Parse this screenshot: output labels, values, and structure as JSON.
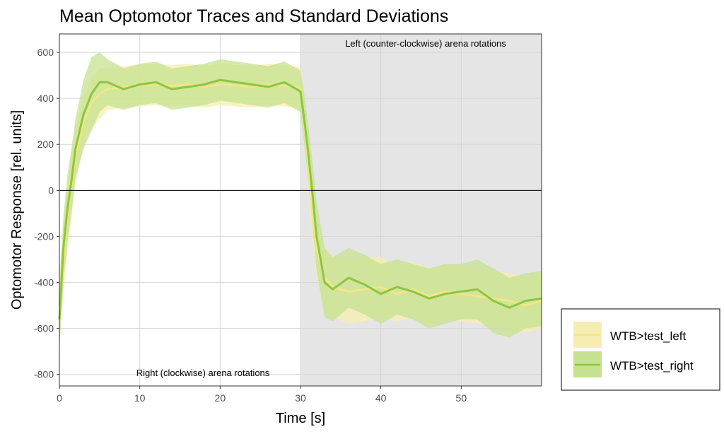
{
  "chart_data": {
    "type": "line",
    "title": "Mean Optomotor Traces and Standard Deviations",
    "xlabel": "Time [s]",
    "ylabel": "Optomotor Response [rel. units]",
    "xlim": [
      0,
      60
    ],
    "ylim": [
      -850,
      680
    ],
    "x_ticks": [
      0,
      10,
      20,
      30,
      40,
      50
    ],
    "y_ticks": [
      -800,
      -600,
      -400,
      -200,
      0,
      200,
      400,
      600
    ],
    "grid": true,
    "legend_position": "right",
    "shaded_region": {
      "x_start": 30,
      "x_end": 60,
      "color": "#e5e5e5"
    },
    "annotations": {
      "left_rotation": "Left (counter-clockwise) arena rotations",
      "right_rotation": "Right (clockwise) arena rotations"
    },
    "series": [
      {
        "name": "WTB>test_left",
        "color": "#f2e68a",
        "band_color": "#f5eeb0",
        "x": [
          0,
          0.5,
          1,
          1.5,
          2,
          3,
          4,
          5,
          6,
          8,
          10,
          12,
          14,
          16,
          18,
          20,
          22,
          24,
          26,
          28,
          29.5,
          30,
          30.5,
          31,
          31.5,
          32,
          33,
          34,
          36,
          38,
          40,
          42,
          44,
          46,
          48,
          50,
          52,
          54,
          56,
          58,
          60
        ],
        "values": [
          -500,
          -300,
          -120,
          20,
          150,
          300,
          380,
          420,
          440,
          450,
          455,
          460,
          455,
          460,
          450,
          460,
          455,
          450,
          460,
          455,
          450,
          440,
          300,
          100,
          -100,
          -250,
          -380,
          -420,
          -440,
          -430,
          -420,
          -450,
          -430,
          -460,
          -440,
          -450,
          -460,
          -470,
          -480,
          -500,
          -480
        ],
        "sd": [
          150,
          150,
          140,
          140,
          120,
          100,
          110,
          110,
          90,
          90,
          90,
          90,
          90,
          90,
          90,
          90,
          90,
          90,
          90,
          90,
          90,
          90,
          100,
          110,
          120,
          130,
          130,
          130,
          140,
          140,
          130,
          120,
          120,
          120,
          120,
          120,
          120,
          120,
          120,
          120,
          120
        ]
      },
      {
        "name": "WTB>test_right",
        "color": "#8dc63f",
        "band_color": "#c6e18f",
        "x": [
          0,
          0.5,
          1,
          1.5,
          2,
          3,
          4,
          5,
          6,
          8,
          10,
          12,
          14,
          16,
          18,
          20,
          22,
          24,
          26,
          28,
          29.5,
          30,
          30.5,
          31,
          31.5,
          32,
          33,
          34,
          36,
          38,
          40,
          42,
          44,
          46,
          48,
          50,
          52,
          54,
          56,
          58,
          60
        ],
        "values": [
          -560,
          -250,
          -80,
          40,
          180,
          330,
          420,
          470,
          470,
          440,
          460,
          470,
          440,
          450,
          460,
          480,
          470,
          460,
          450,
          470,
          440,
          430,
          300,
          150,
          -20,
          -200,
          -400,
          -430,
          -380,
          -410,
          -450,
          -420,
          -440,
          -470,
          -450,
          -440,
          -430,
          -480,
          -510,
          -480,
          -470
        ],
        "sd": [
          140,
          140,
          150,
          140,
          130,
          150,
          160,
          130,
          100,
          90,
          90,
          90,
          90,
          90,
          90,
          90,
          90,
          90,
          90,
          90,
          90,
          90,
          110,
          120,
          140,
          150,
          150,
          140,
          130,
          130,
          130,
          120,
          120,
          130,
          130,
          120,
          130,
          140,
          130,
          120,
          120
        ]
      }
    ]
  }
}
